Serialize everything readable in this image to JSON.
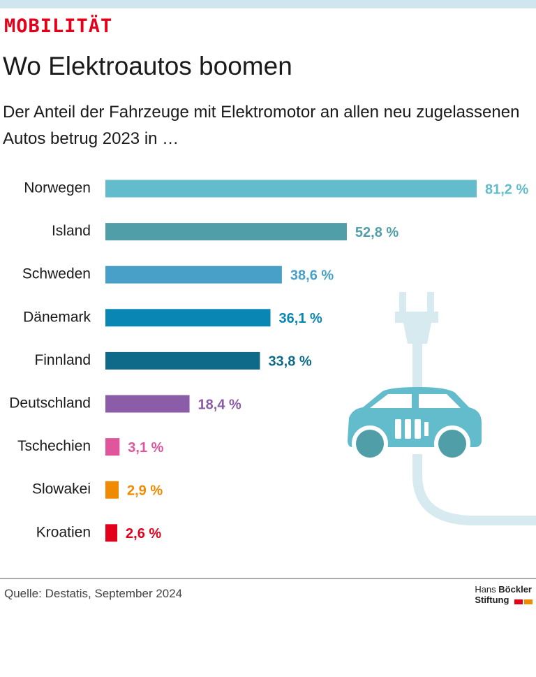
{
  "kicker": "MOBILITÄT",
  "source": "Quelle: Destatis, September 2024",
  "logo": {
    "line1_light": "Hans",
    "line1_bold": "Böckler",
    "line2": "Stiftung"
  },
  "chart_data": {
    "type": "bar",
    "title": "Wo Elektroautos boomen",
    "subtitle": "Der Anteil der Fahrzeuge mit Elektromotor an allen neu zugelassenen Autos betrug 2023 in …",
    "categories": [
      "Norwegen",
      "Island",
      "Schweden",
      "Dänemark",
      "Finnland",
      "Deutschland",
      "Tschechien",
      "Slowakei",
      "Kroatien"
    ],
    "values": [
      81.2,
      52.8,
      38.6,
      36.1,
      33.8,
      18.4,
      3.1,
      2.9,
      2.6
    ],
    "value_labels": [
      "81,2 %",
      "52,8 %",
      "38,6 %",
      "36,1 %",
      "33,8 %",
      "18,4 %",
      "3,1 %",
      "2,9 %",
      "2,6 %"
    ],
    "colors": [
      "#62bccb",
      "#4f9ea8",
      "#48a0c8",
      "#0a86b4",
      "#0f6a8a",
      "#8b5ca7",
      "#e0559b",
      "#f08a00",
      "#e2001a"
    ]
  }
}
